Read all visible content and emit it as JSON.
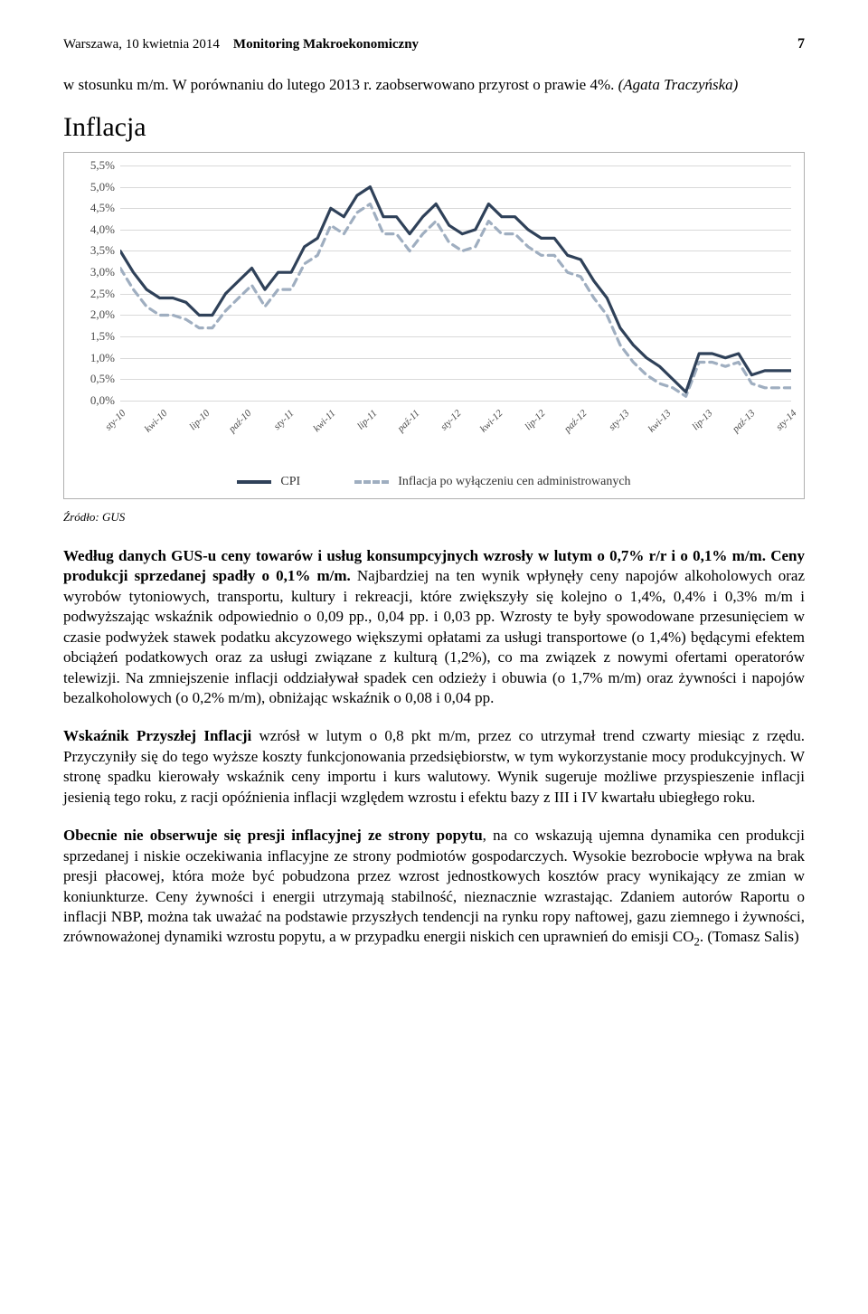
{
  "header": {
    "date_place": "Warszawa, 10 kwietnia 2014",
    "title": "Monitoring Makroekonomiczny",
    "page_number": "7"
  },
  "lead": {
    "text_pre": "w stosunku m/m. W porównaniu do lutego 2013 r. zaobserwowano przyrost o prawie 4%. ",
    "author": "(Agata Traczyńska)"
  },
  "section_title": "Inflacja",
  "chart": {
    "type": "line",
    "ylim": [
      0.0,
      5.5
    ],
    "ytick_step": 0.5,
    "y_ticks": [
      "0,0%",
      "0,5%",
      "1,0%",
      "1,5%",
      "2,0%",
      "2,5%",
      "3,0%",
      "3,5%",
      "4,0%",
      "4,5%",
      "5,0%",
      "5,5%"
    ],
    "x_labels": [
      "sty-10",
      "kwi-10",
      "lip-10",
      "paź-10",
      "sty-11",
      "kwi-11",
      "lip-11",
      "paź-11",
      "sty-12",
      "kwi-12",
      "lip-12",
      "paź-12",
      "sty-13",
      "kwi-13",
      "lip-13",
      "paź-13",
      "sty-14"
    ],
    "series": [
      {
        "name": "CPI",
        "color": "#2f4159",
        "dash": "none",
        "width": 3.2,
        "values": [
          3.5,
          3.0,
          2.6,
          2.4,
          2.4,
          2.3,
          2.0,
          2.0,
          2.5,
          2.8,
          3.1,
          2.6,
          3.0,
          3.0,
          3.6,
          3.8,
          4.5,
          4.3,
          4.8,
          5.0,
          4.3,
          4.3,
          3.9,
          4.3,
          4.6,
          4.1,
          3.9,
          4.0,
          4.6,
          4.3,
          4.3,
          4.0,
          3.8,
          3.8,
          3.4,
          3.3,
          2.8,
          2.4,
          1.7,
          1.3,
          1.0,
          0.8,
          0.5,
          0.2,
          1.1,
          1.1,
          1.0,
          1.1,
          0.6,
          0.7,
          0.7,
          0.7
        ]
      },
      {
        "name": "Inflacja po wyłączeniu cen administrowanych",
        "color": "#9faec0",
        "dash": "8 6",
        "width": 3.2,
        "values": [
          3.1,
          2.6,
          2.2,
          2.0,
          2.0,
          1.9,
          1.7,
          1.7,
          2.1,
          2.4,
          2.7,
          2.2,
          2.6,
          2.6,
          3.2,
          3.4,
          4.1,
          3.9,
          4.4,
          4.6,
          3.9,
          3.9,
          3.5,
          3.9,
          4.2,
          3.7,
          3.5,
          3.6,
          4.2,
          3.9,
          3.9,
          3.6,
          3.4,
          3.4,
          3.0,
          2.9,
          2.4,
          2.0,
          1.3,
          0.9,
          0.6,
          0.4,
          0.3,
          0.1,
          0.9,
          0.9,
          0.8,
          0.9,
          0.4,
          0.3,
          0.3,
          0.3
        ]
      }
    ],
    "legend": {
      "cpi": "CPI",
      "ex_admin": "Inflacja po wyłączeniu cen administrowanych"
    },
    "grid_color": "#d9d9d9",
    "background": "#ffffff"
  },
  "source": "Źródło: GUS",
  "para1": {
    "bold1": "Według danych GUS-u ceny towarów i usług konsumpcyjnych wzrosły w lutym o 0,7% r/r i o 0,1% m/m. Ceny produkcji sprzedanej spadły o 0,1% m/m.",
    "rest": " Najbardziej na ten wynik wpłynęły ceny napojów alkoholowych oraz wyrobów tytoniowych, transportu, kultury i rekreacji, które zwiększyły się kolejno o 1,4%, 0,4% i 0,3% m/m i podwyższając wskaźnik odpowiednio o 0,09 pp., 0,04 pp. i 0,03 pp. Wzrosty te były spowodowane przesunięciem w czasie podwyżek stawek podatku akcyzowego większymi opłatami za usługi transportowe (o 1,4%) będącymi efektem obciążeń podatkowych oraz za usługi związane z kulturą (1,2%), co ma związek z nowymi ofertami operatorów telewizji. Na zmniejszenie inflacji oddziaływał spadek cen odzieży i obuwia (o 1,7% m/m) oraz żywności i napojów bezalkoholowych (o 0,2% m/m), obniżając wskaźnik o 0,08 i 0,04 pp."
  },
  "para2": {
    "bold1": "Wskaźnik Przyszłej Inflacji",
    "rest": " wzrósł w lutym o 0,8 pkt m/m, przez co utrzymał trend czwarty miesiąc z rzędu. Przyczyniły się do tego wyższe koszty funkcjonowania przedsiębiorstw, w tym wykorzystanie mocy produkcyjnych. W stronę spadku kierowały wskaźnik ceny importu i kurs walutowy. Wynik sugeruje możliwe przyspieszenie inflacji jesienią tego roku, z racji opóźnienia inflacji względem wzrostu i efektu bazy z III i IV kwartału ubiegłego roku."
  },
  "para3": {
    "bold1": "Obecnie nie obserwuje się presji inflacyjnej ze strony popytu",
    "mid": ", na co wskazują ujemna dynamika cen produkcji sprzedanej i niskie oczekiwania inflacyjne ze strony podmiotów gospodarczych. Wysokie bezrobocie wpływa na brak presji płacowej, która może być pobudzona przez wzrost jednostkowych kosztów pracy wynikający ze zmian w koniunkturze. Ceny żywności i energii utrzymają stabilność, nieznacznie wzrastając. Zdaniem autorów Raportu o inflacji NBP, można tak uważać na podstawie przyszłych tendencji na rynku ropy naftowej, gazu ziemnego i żywności, zrównoważonej dynamiki wzrostu popytu, a w przypadku energii niskich cen uprawnień do emisji CO",
    "sub": "2",
    "end": ". (Tomasz Salis)"
  }
}
